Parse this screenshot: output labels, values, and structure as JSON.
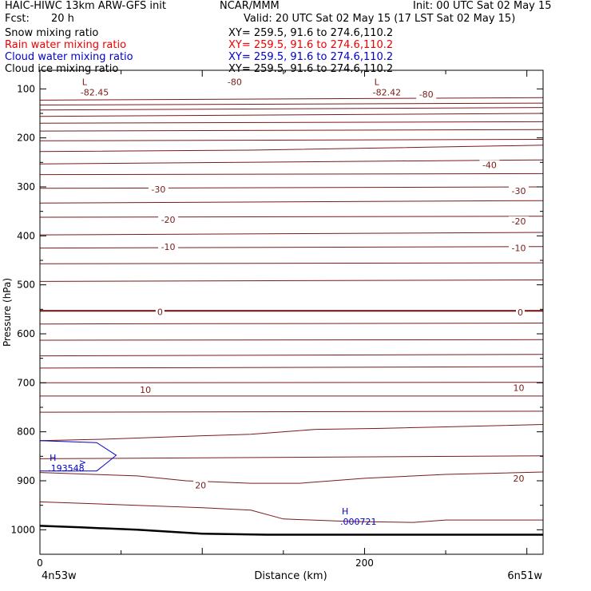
{
  "header": {
    "model": "HAIC-HIWC 13km ARW-GFS init",
    "org": "NCAR/MMM",
    "init": "Init: 00 UTC Sat 02 May 15",
    "fcst_label": "Fcst:",
    "fcst_value": "20 h",
    "valid": "Valid: 20 UTC Sat 02 May 15 (17 LST Sat 02 May 15)",
    "fields": [
      {
        "name": "Snow mixing ratio",
        "xy": "XY= 259.5, 91.6 to 274.6,110.2",
        "color": "#000000"
      },
      {
        "name": "Rain water mixing ratio",
        "xy": "XY= 259.5, 91.6 to 274.6,110.2",
        "color": "#ee0000"
      },
      {
        "name": "Cloud water mixing ratio",
        "xy": "XY= 259.5, 91.6 to 274.6,110.2",
        "color": "#0000cc"
      },
      {
        "name": "Cloud ice mixing ratio",
        "xy": "XY= 259.5, 91.6 to 274.6,110.2",
        "color": "#000000"
      }
    ]
  },
  "chart_data": {
    "type": "contour-cross-section",
    "xlabel": "Distance (km)",
    "ylabel": "Pressure (hPa)",
    "xlim": [
      0,
      310
    ],
    "ylim": [
      1050,
      62
    ],
    "x_ticks": [
      0,
      200
    ],
    "y_ticks": [
      100,
      200,
      300,
      400,
      500,
      600,
      700,
      800,
      900,
      1000
    ],
    "x_endpoints": {
      "left": "4n53w",
      "right": "6n51w"
    },
    "temperature_contour_color": "#7a1a1a",
    "temperature_contour_interval_c": 5,
    "temperature_contours": [
      {
        "x": [
          0,
          310
        ],
        "p": [
          123,
          118
        ]
      },
      {
        "x": [
          0,
          310
        ],
        "p": [
          133,
          129
        ]
      },
      {
        "x": [
          0,
          310
        ],
        "p": [
          143,
          138
        ]
      },
      {
        "x": [
          0,
          310
        ],
        "p": [
          156,
          150
        ]
      },
      {
        "x": [
          0,
          310
        ],
        "p": [
          170,
          167
        ]
      },
      {
        "x": [
          0,
          310
        ],
        "p": [
          186,
          183
        ]
      },
      {
        "x": [
          0,
          310
        ],
        "p": [
          206,
          203
        ]
      },
      {
        "x": [
          0,
          130,
          310
        ],
        "p": [
          228,
          225,
          215
        ]
      },
      {
        "x": [
          0,
          310
        ],
        "p": [
          253,
          245
        ]
      },
      {
        "x": [
          0,
          310
        ],
        "p": [
          275,
          273
        ]
      },
      {
        "x": [
          0,
          310
        ],
        "p": [
          303,
          300
        ]
      },
      {
        "x": [
          0,
          310
        ],
        "p": [
          333,
          328
        ]
      },
      {
        "x": [
          0,
          310
        ],
        "p": [
          362,
          360
        ]
      },
      {
        "x": [
          0,
          310
        ],
        "p": [
          398,
          393
        ]
      },
      {
        "x": [
          0,
          310
        ],
        "p": [
          425,
          422
        ]
      },
      {
        "x": [
          0,
          310
        ],
        "p": [
          457,
          455
        ]
      },
      {
        "x": [
          0,
          310
        ],
        "p": [
          493,
          490
        ]
      },
      {
        "x": [
          0,
          310
        ],
        "p": [
          580,
          578
        ]
      },
      {
        "x": [
          0,
          310
        ],
        "p": [
          613,
          612
        ]
      },
      {
        "x": [
          0,
          310
        ],
        "p": [
          645,
          642
        ]
      },
      {
        "x": [
          0,
          310
        ],
        "p": [
          670,
          667
        ]
      },
      {
        "x": [
          0,
          310
        ],
        "p": [
          700,
          699
        ]
      },
      {
        "x": [
          0,
          310
        ],
        "p": [
          727,
          727
        ]
      },
      {
        "x": [
          0,
          310
        ],
        "p": [
          760,
          758
        ]
      },
      {
        "x": [
          0,
          40,
          100,
          130,
          170,
          210,
          250,
          310
        ],
        "p": [
          818,
          815,
          808,
          805,
          795,
          793,
          790,
          785
        ]
      },
      {
        "x": [
          0,
          310
        ],
        "p": [
          855,
          849
        ]
      },
      {
        "x": [
          0,
          60,
          90,
          130,
          160,
          200,
          250,
          310
        ],
        "p": [
          883,
          890,
          900,
          905,
          905,
          895,
          887,
          882
        ]
      },
      {
        "x": [
          0,
          60,
          100,
          130,
          150,
          190,
          230,
          250,
          310
        ],
        "p": [
          943,
          950,
          955,
          960,
          978,
          983,
          985,
          980,
          980
        ]
      }
    ],
    "freezing_level": {
      "x": [
        0,
        310
      ],
      "p": [
        553,
        553
      ]
    },
    "labels": [
      {
        "text": "-80",
        "x": 120,
        "p": 86
      },
      {
        "text": "-80",
        "x": 238,
        "p": 111
      },
      {
        "text": "-40",
        "x": 277,
        "p": 255
      },
      {
        "text": "-30",
        "x": 73,
        "p": 305
      },
      {
        "text": "-30",
        "x": 295,
        "p": 308
      },
      {
        "text": "-20",
        "x": 79,
        "p": 367
      },
      {
        "text": "-20",
        "x": 295,
        "p": 370
      },
      {
        "text": "-10",
        "x": 79,
        "p": 422
      },
      {
        "text": "-10",
        "x": 295,
        "p": 425
      },
      {
        "text": "0",
        "x": 74,
        "p": 555
      },
      {
        "text": "0",
        "x": 296,
        "p": 556
      },
      {
        "text": "10",
        "x": 65,
        "p": 714
      },
      {
        "text": "10",
        "x": 295,
        "p": 710
      },
      {
        "text": "20",
        "x": 99,
        "p": 909
      },
      {
        "text": "20",
        "x": 295,
        "p": 895
      }
    ],
    "extrema": [
      {
        "symbol": "L",
        "value": "-82.45",
        "x": 25,
        "p": 99,
        "color": "#7a1a1a"
      },
      {
        "symbol": "L",
        "value": "-82.42",
        "x": 205,
        "p": 99,
        "color": "#7a1a1a"
      },
      {
        "symbol": "H",
        "value": ".193548",
        "x": 5,
        "p": 866,
        "color": "#0000cc"
      },
      {
        "symbol": "H",
        "value": ".000721",
        "x": 185,
        "p": 975,
        "color": "#0000cc"
      }
    ],
    "cloud_water_contour": {
      "x": [
        0,
        35,
        47,
        35,
        0
      ],
      "p": [
        818,
        822,
        848,
        880,
        880
      ],
      "label": ">",
      "color": "#0000cc"
    },
    "terrain": {
      "x": [
        0,
        25,
        60,
        100,
        140,
        180,
        310
      ],
      "p": [
        992,
        995,
        1000,
        1008,
        1010,
        1010,
        1010
      ]
    }
  }
}
